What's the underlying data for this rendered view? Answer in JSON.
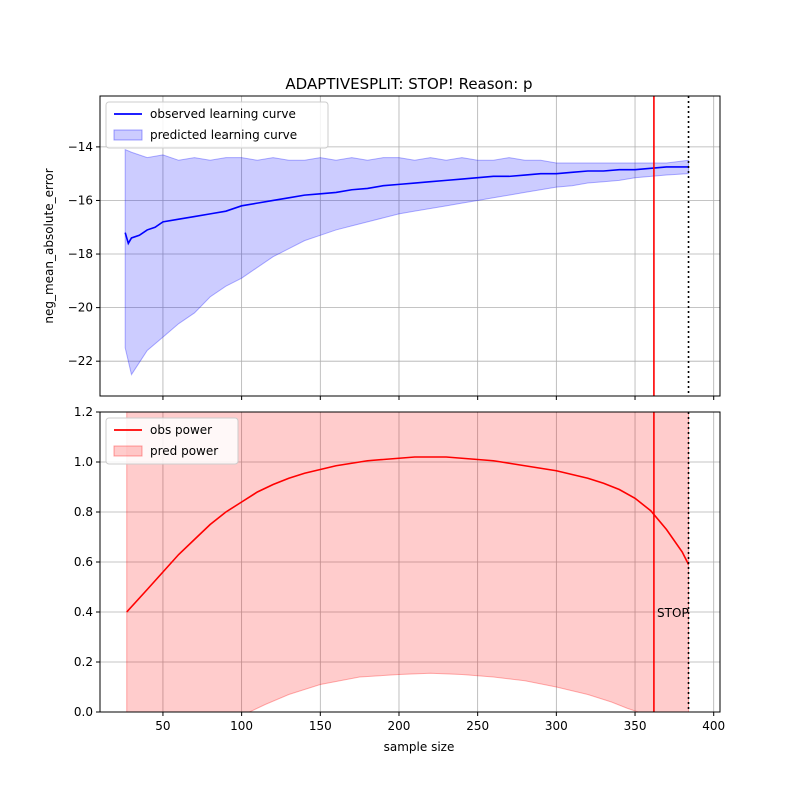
{
  "figure": {
    "title": "ADAPTIVESPLIT: STOP!  Reason: p"
  },
  "chart_data": [
    {
      "type": "area",
      "title": "ADAPTIVESPLIT: STOP!  Reason: p",
      "ylabel": "neg_mean_absolute_error",
      "xlim": [
        10,
        404
      ],
      "ylim": [
        -23.3,
        -12.1
      ],
      "xticks": [
        50,
        100,
        150,
        200,
        250,
        300,
        350,
        400
      ],
      "yticks": [
        -22,
        -20,
        -18,
        -16,
        -14
      ],
      "ytick_labels": [
        "−22",
        "−20",
        "−18",
        "−16",
        "−14"
      ],
      "grid": true,
      "legend_position": "top-left",
      "series": [
        {
          "name": "observed learning curve",
          "kind": "line",
          "color": "#0000ff",
          "x": [
            26,
            28,
            30,
            35,
            40,
            45,
            50,
            60,
            70,
            80,
            90,
            100,
            110,
            120,
            130,
            140,
            150,
            160,
            170,
            180,
            190,
            200,
            210,
            220,
            230,
            240,
            250,
            260,
            270,
            280,
            290,
            300,
            310,
            320,
            330,
            340,
            350,
            360,
            370,
            384
          ],
          "y": [
            -17.2,
            -17.6,
            -17.4,
            -17.3,
            -17.1,
            -17.0,
            -16.8,
            -16.7,
            -16.6,
            -16.5,
            -16.4,
            -16.2,
            -16.1,
            -16.0,
            -15.9,
            -15.8,
            -15.75,
            -15.7,
            -15.6,
            -15.55,
            -15.45,
            -15.4,
            -15.35,
            -15.3,
            -15.25,
            -15.2,
            -15.15,
            -15.1,
            -15.1,
            -15.05,
            -15.0,
            -15.0,
            -14.95,
            -14.9,
            -14.9,
            -14.85,
            -14.85,
            -14.8,
            -14.75,
            -14.75
          ]
        },
        {
          "name": "predicted learning curve",
          "kind": "band",
          "color": "#0000ff",
          "x": [
            26,
            30,
            40,
            50,
            60,
            70,
            80,
            90,
            100,
            110,
            120,
            130,
            140,
            150,
            160,
            170,
            180,
            190,
            200,
            210,
            220,
            230,
            240,
            250,
            260,
            270,
            280,
            290,
            300,
            310,
            320,
            330,
            340,
            350,
            360,
            370,
            384
          ],
          "upper": [
            -14.1,
            -14.2,
            -14.4,
            -14.3,
            -14.5,
            -14.4,
            -14.5,
            -14.4,
            -14.4,
            -14.5,
            -14.4,
            -14.5,
            -14.5,
            -14.4,
            -14.5,
            -14.4,
            -14.5,
            -14.4,
            -14.4,
            -14.5,
            -14.4,
            -14.5,
            -14.4,
            -14.5,
            -14.5,
            -14.4,
            -14.5,
            -14.5,
            -14.6,
            -14.6,
            -14.6,
            -14.6,
            -14.6,
            -14.6,
            -14.6,
            -14.6,
            -14.5
          ],
          "lower": [
            -21.5,
            -22.5,
            -21.6,
            -21.1,
            -20.6,
            -20.2,
            -19.6,
            -19.2,
            -18.9,
            -18.5,
            -18.1,
            -17.8,
            -17.5,
            -17.3,
            -17.1,
            -16.95,
            -16.8,
            -16.65,
            -16.5,
            -16.4,
            -16.3,
            -16.2,
            -16.1,
            -16.0,
            -15.9,
            -15.8,
            -15.7,
            -15.6,
            -15.5,
            -15.45,
            -15.35,
            -15.3,
            -15.25,
            -15.15,
            -15.1,
            -15.05,
            -15.0
          ]
        }
      ],
      "vlines": [
        {
          "x": 362,
          "color": "#ff0000",
          "style": "solid"
        },
        {
          "x": 384,
          "color": "#000000",
          "style": "dotted"
        }
      ]
    },
    {
      "type": "area",
      "xlabel": "sample size",
      "xlim": [
        10,
        404
      ],
      "ylim": [
        0.0,
        1.2
      ],
      "xticks": [
        50,
        100,
        150,
        200,
        250,
        300,
        350,
        400
      ],
      "yticks": [
        0.0,
        0.2,
        0.4,
        0.6,
        0.8,
        1.0,
        1.2
      ],
      "ytick_labels": [
        "0.0",
        "0.2",
        "0.4",
        "0.6",
        "0.8",
        "1.0",
        "1.2"
      ],
      "grid": true,
      "legend_position": "top-left",
      "series": [
        {
          "name": "obs power",
          "kind": "line",
          "color": "#ff0000",
          "x": [
            27,
            40,
            50,
            60,
            70,
            80,
            90,
            100,
            110,
            120,
            130,
            140,
            150,
            160,
            170,
            180,
            190,
            200,
            210,
            220,
            230,
            240,
            250,
            260,
            270,
            280,
            290,
            300,
            310,
            320,
            330,
            340,
            350,
            360,
            370,
            380,
            384
          ],
          "y": [
            0.4,
            0.49,
            0.56,
            0.63,
            0.69,
            0.75,
            0.8,
            0.84,
            0.88,
            0.91,
            0.935,
            0.955,
            0.97,
            0.985,
            0.995,
            1.005,
            1.01,
            1.015,
            1.02,
            1.02,
            1.02,
            1.015,
            1.01,
            1.005,
            0.995,
            0.985,
            0.975,
            0.965,
            0.95,
            0.935,
            0.915,
            0.89,
            0.855,
            0.805,
            0.73,
            0.64,
            0.59
          ]
        },
        {
          "name": "pred power",
          "kind": "band",
          "color": "#ff0000",
          "x": [
            27,
            60,
            100,
            105,
            115,
            130,
            150,
            175,
            200,
            220,
            240,
            260,
            280,
            300,
            320,
            335,
            345,
            352,
            356,
            384
          ],
          "upper": [
            1.2,
            1.2,
            1.2,
            1.2,
            1.2,
            1.2,
            1.2,
            1.2,
            1.2,
            1.2,
            1.2,
            1.2,
            1.2,
            1.2,
            1.2,
            1.2,
            1.2,
            1.2,
            1.2,
            1.2
          ],
          "lower": [
            0.0,
            0.0,
            0.0,
            0.0,
            0.03,
            0.07,
            0.11,
            0.14,
            0.15,
            0.155,
            0.15,
            0.14,
            0.125,
            0.1,
            0.07,
            0.04,
            0.015,
            0.0,
            0.0,
            0.0
          ]
        }
      ],
      "vlines": [
        {
          "x": 362,
          "color": "#ff0000",
          "style": "solid"
        },
        {
          "x": 384,
          "color": "#000000",
          "style": "dotted"
        }
      ],
      "annotations": [
        {
          "text": "STOP",
          "x": 364,
          "y": 0.4
        }
      ]
    }
  ]
}
